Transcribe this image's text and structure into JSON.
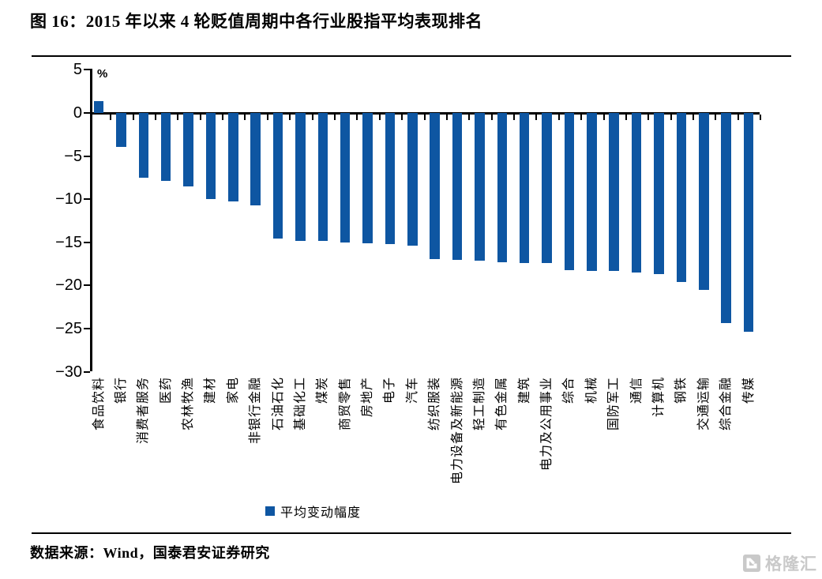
{
  "title": "图 16：2015 年以来 4 轮贬值周期中各行业股指平均表现排名",
  "chart_data": {
    "type": "bar",
    "title": "图 16：2015 年以来 4 轮贬值周期中各行业股指平均表现排名",
    "unit": "%",
    "categories": [
      "食品饮料",
      "银行",
      "消费者服务",
      "医药",
      "农林牧渔",
      "建材",
      "家电",
      "非银行金融",
      "石油石化",
      "基础化工",
      "煤炭",
      "商贸零售",
      "房地产",
      "电子",
      "汽车",
      "纺织服装",
      "电力设备及新能源",
      "轻工制造",
      "有色金属",
      "建筑",
      "电力及公用事业",
      "综合",
      "机械",
      "国防军工",
      "通信",
      "计算机",
      "钢铁",
      "交通运输",
      "综合金融",
      "传媒"
    ],
    "values": [
      1.4,
      -3.9,
      -7.5,
      -7.9,
      -8.5,
      -10.0,
      -10.3,
      -10.7,
      -14.6,
      -14.8,
      -14.8,
      -15.0,
      -15.1,
      -15.2,
      -15.4,
      -16.9,
      -17.0,
      -17.1,
      -17.3,
      -17.4,
      -17.4,
      -18.2,
      -18.3,
      -18.3,
      -18.5,
      -18.7,
      -19.6,
      -20.5,
      -24.4,
      -25.4
    ],
    "series_name": "平均变动幅度",
    "ylim": [
      -30,
      5
    ],
    "yticks": [
      5,
      0,
      -5,
      -10,
      -15,
      -20,
      -25,
      -30
    ],
    "xlabel": "",
    "ylabel": "%",
    "grid": false,
    "legend_position": "bottom",
    "bar_color": "#0E56A2"
  },
  "legend": {
    "label": "平均变动幅度"
  },
  "footer": {
    "source": "数据来源：Wind，国泰君安证券研究"
  },
  "watermark": {
    "text": "格隆汇"
  }
}
